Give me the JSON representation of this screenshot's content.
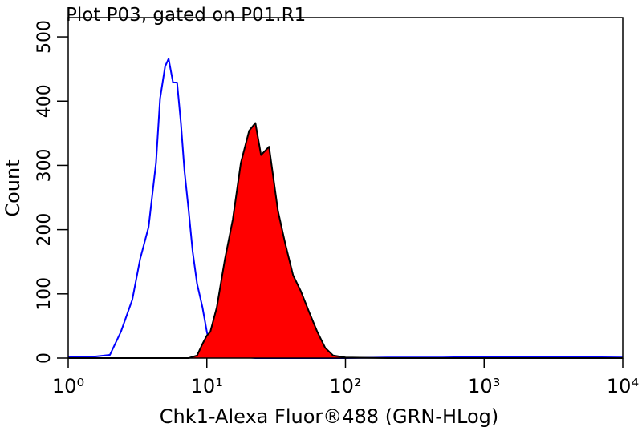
{
  "chart_data": {
    "type": "line",
    "title": "Plot P03, gated on P01.R1",
    "x_label": "Chk1-Alexa Fluor®488 (GRN-HLog)",
    "y_label": "Count",
    "xscale": "log",
    "xlim": [
      1,
      10000
    ],
    "xticks": [
      {
        "value": 1,
        "label": "10⁰"
      },
      {
        "value": 10,
        "label": "10¹"
      },
      {
        "value": 100,
        "label": "10²"
      },
      {
        "value": 1000,
        "label": "10³"
      },
      {
        "value": 10000,
        "label": "10⁴"
      }
    ],
    "ylim": [
      0,
      530
    ],
    "yticks": [
      0,
      100,
      200,
      300,
      400,
      500
    ],
    "x": [
      1,
      1.5,
      2,
      2.4,
      2.9,
      3.3,
      3.8,
      4.3,
      4.6,
      5,
      5.3,
      5.7,
      6.1,
      6.5,
      6.9,
      7.4,
      7.9,
      8.5,
      9.3,
      10,
      10.6,
      11.8,
      13.5,
      15.4,
      17.6,
      20.2,
      22.4,
      24.6,
      28.1,
      32.6,
      36.7,
      41.9,
      47.7,
      54.6,
      62.6,
      71.4,
      81.5,
      100,
      200,
      500,
      1000,
      3000,
      10000
    ],
    "series": [
      {
        "color": "#0000ff",
        "fill": false,
        "values": [
          2,
          2,
          5,
          41,
          91,
          154,
          204,
          304,
          404,
          454,
          466,
          429,
          429,
          366,
          291,
          229,
          166,
          116,
          79,
          41,
          16,
          8,
          4,
          2,
          1,
          1,
          0,
          0,
          0,
          0,
          0,
          0,
          0,
          0,
          0,
          0,
          0,
          0,
          1,
          1,
          2,
          2,
          1
        ]
      },
      {
        "color": "#ff0000",
        "edgecolor": "#000000",
        "fill": true,
        "values": [
          0,
          0,
          0,
          0,
          0,
          0,
          0,
          0,
          0,
          0,
          0,
          0,
          0,
          0,
          0,
          0,
          2,
          4,
          22,
          35,
          41,
          79,
          154,
          216,
          304,
          354,
          366,
          316,
          329,
          229,
          179,
          129,
          104,
          72,
          41,
          16,
          4,
          1,
          0,
          0,
          0,
          0,
          0
        ]
      }
    ]
  }
}
